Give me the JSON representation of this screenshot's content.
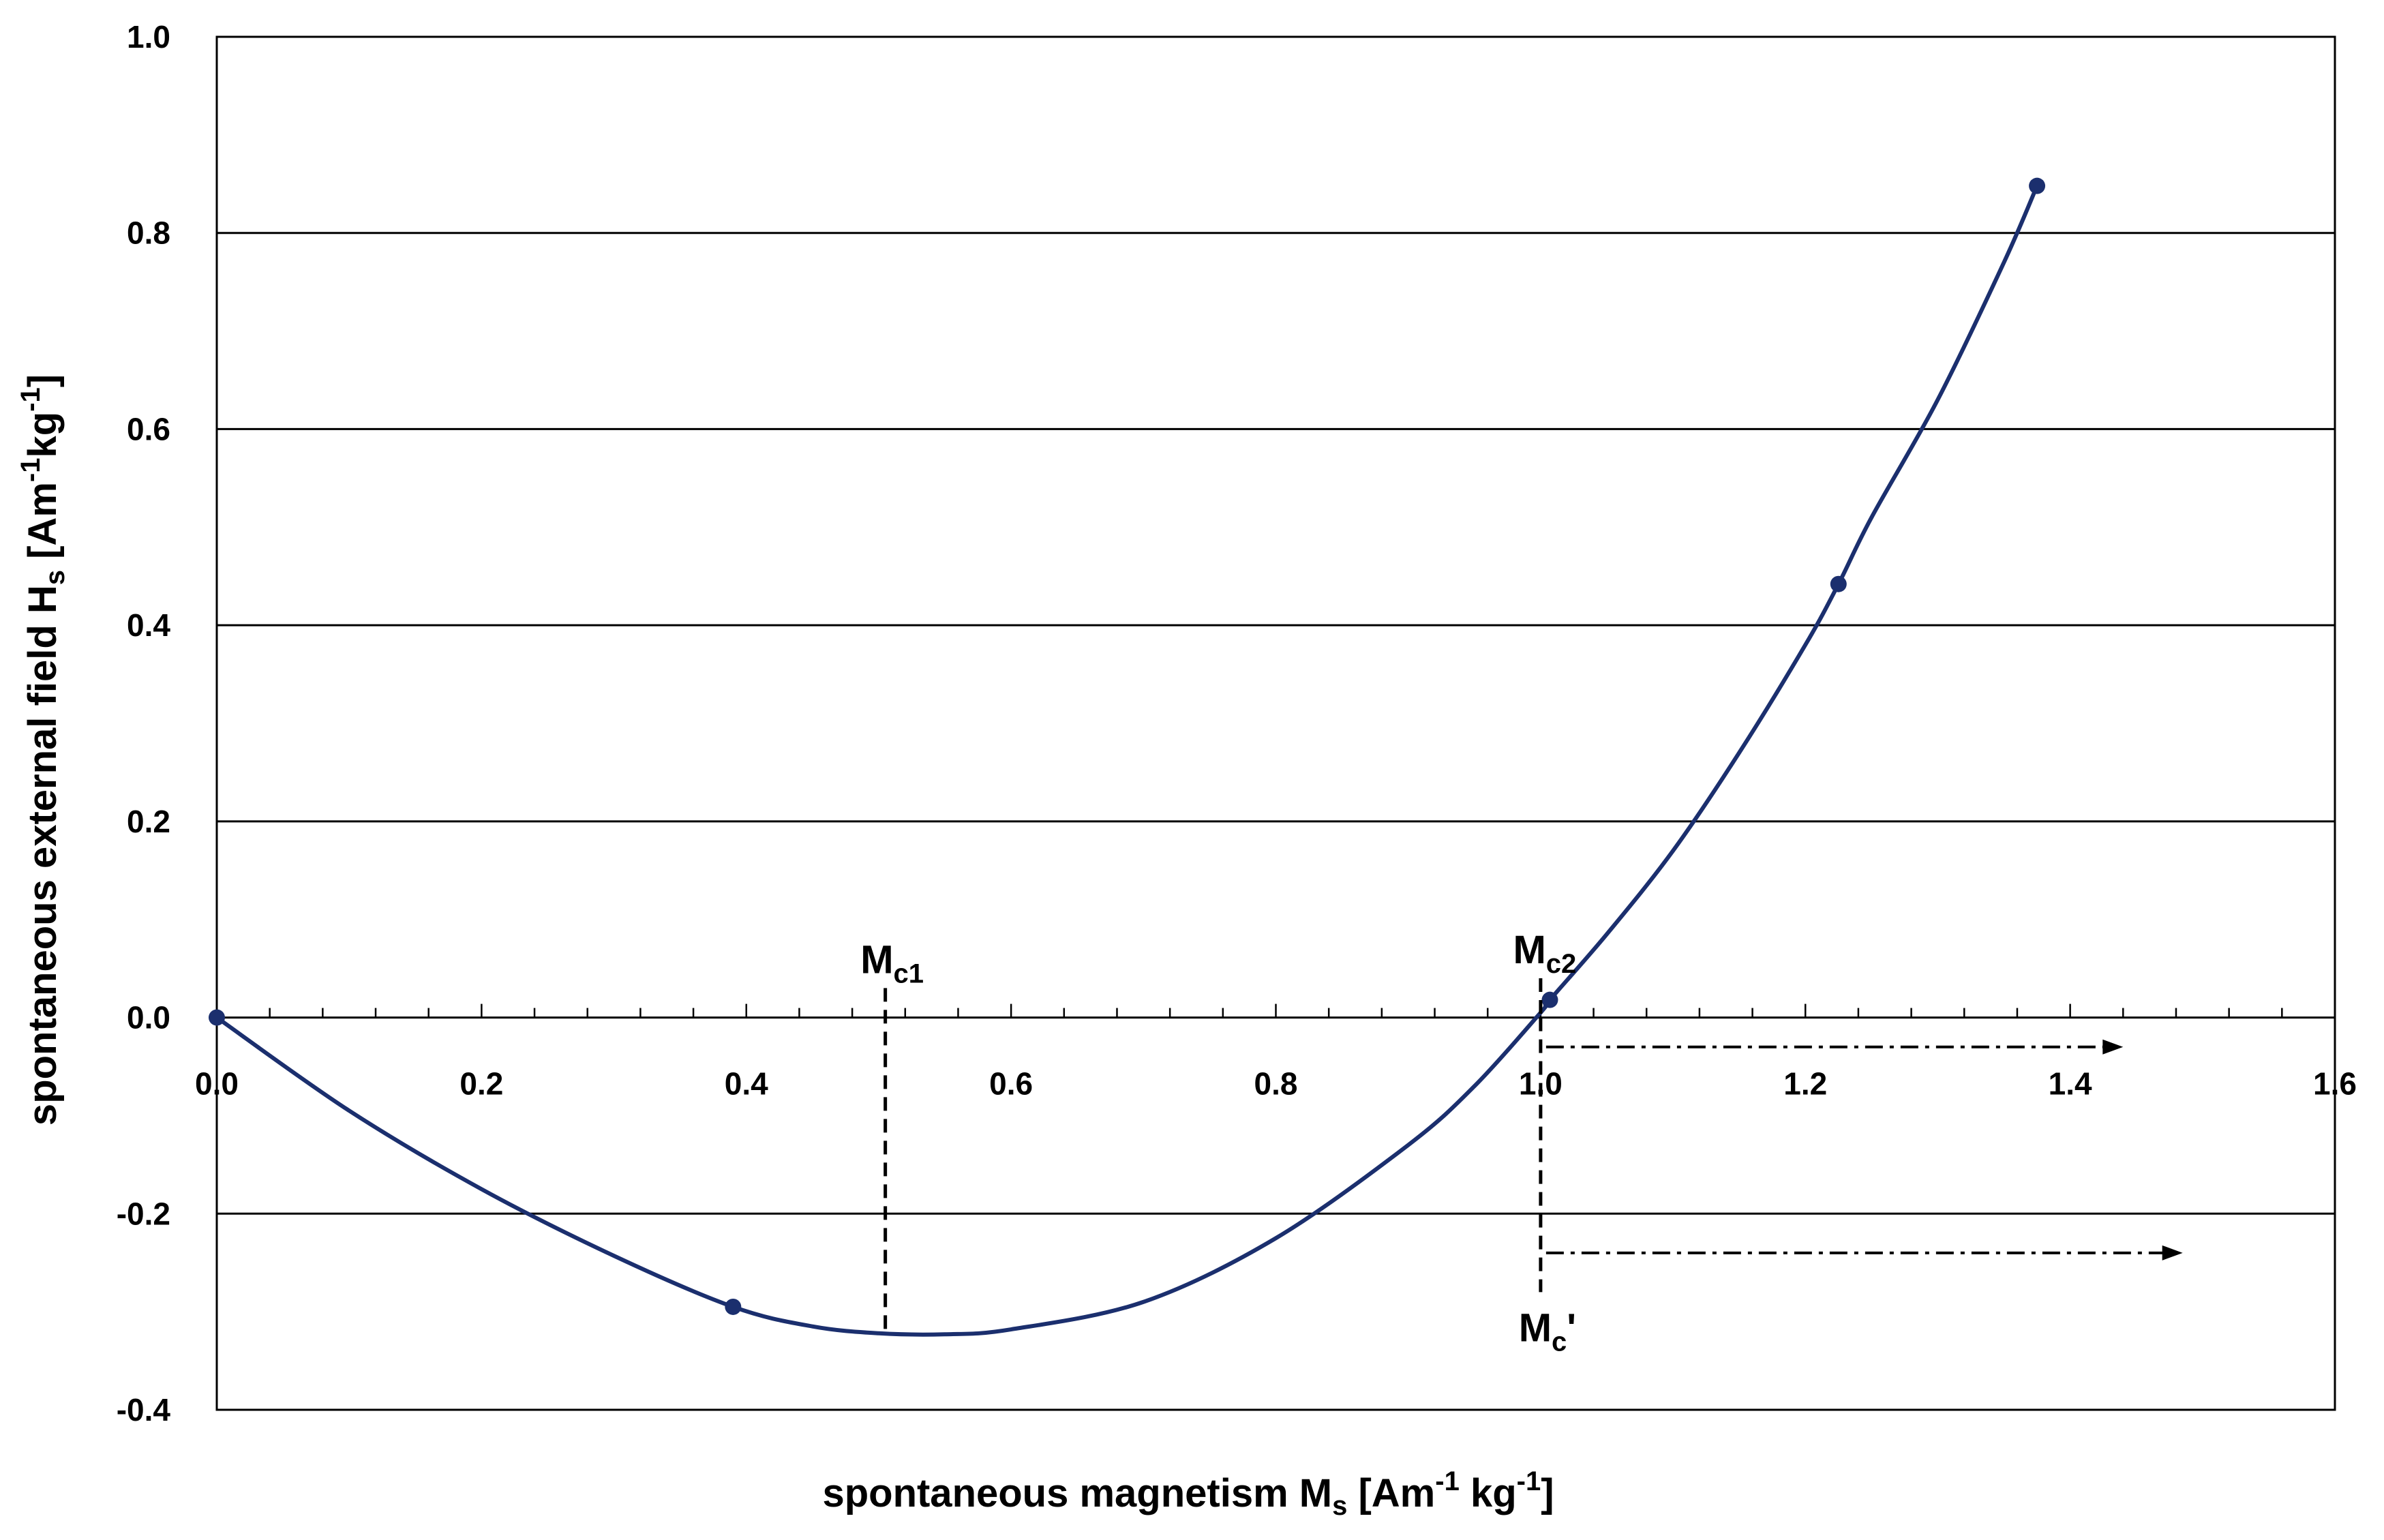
{
  "chart_data": {
    "type": "scatter",
    "title": "",
    "xlabel": {
      "main": "spontaneous magnetism M",
      "sub": "s",
      "unit_prefix": " [Am",
      "sup1": "-1",
      "unit_mid": " kg",
      "sup2": "-1",
      "unit_suffix": "]"
    },
    "ylabel": {
      "main": "spontaneous external field H",
      "sub": "s",
      "unit_prefix": " [Am",
      "sup1": "-1",
      "unit_mid": "kg",
      "sup2": "-1",
      "unit_suffix": "]"
    },
    "xlim": [
      0.0,
      1.6
    ],
    "ylim": [
      -0.4,
      1.0
    ],
    "x_ticks": [
      "0.0",
      "0.2",
      "0.4",
      "0.6",
      "0.8",
      "1.0",
      "1.2",
      "1.4",
      "1.6"
    ],
    "y_ticks": [
      "1.0",
      "0.8",
      "0.6",
      "0.4",
      "0.2",
      "0.0",
      "-0.2",
      "-0.4"
    ],
    "grid": "horizontal",
    "series": [
      {
        "color": "#1b2f6e",
        "points": [
          {
            "x": 0.0,
            "y": 0.0
          },
          {
            "x": 0.39,
            "y": -0.295
          },
          {
            "x": 1.007,
            "y": 0.018
          },
          {
            "x": 1.225,
            "y": 0.442
          },
          {
            "x": 1.375,
            "y": 0.848
          }
        ],
        "curve": [
          {
            "x": 0.0,
            "y": 0.0
          },
          {
            "x": 0.1,
            "y": -0.095
          },
          {
            "x": 0.2,
            "y": -0.175
          },
          {
            "x": 0.3,
            "y": -0.243
          },
          {
            "x": 0.39,
            "y": -0.295
          },
          {
            "x": 0.45,
            "y": -0.315
          },
          {
            "x": 0.5,
            "y": -0.322
          },
          {
            "x": 0.55,
            "y": -0.323
          },
          {
            "x": 0.6,
            "y": -0.318
          },
          {
            "x": 0.7,
            "y": -0.29
          },
          {
            "x": 0.8,
            "y": -0.225
          },
          {
            "x": 0.9,
            "y": -0.13
          },
          {
            "x": 0.95,
            "y": -0.07
          },
          {
            "x": 1.0,
            "y": 0.005
          },
          {
            "x": 1.007,
            "y": 0.018
          },
          {
            "x": 1.05,
            "y": 0.085
          },
          {
            "x": 1.1,
            "y": 0.17
          },
          {
            "x": 1.15,
            "y": 0.27
          },
          {
            "x": 1.2,
            "y": 0.38
          },
          {
            "x": 1.225,
            "y": 0.442
          },
          {
            "x": 1.25,
            "y": 0.51
          },
          {
            "x": 1.3,
            "y": 0.63
          },
          {
            "x": 1.35,
            "y": 0.77
          },
          {
            "x": 1.375,
            "y": 0.848
          }
        ]
      }
    ],
    "annotations": [
      {
        "main": "M",
        "sub": "c1",
        "suffix": "",
        "x": 0.505,
        "y_top": 0.03,
        "y_bottom": -0.322
      },
      {
        "main": "M",
        "sub": "c2",
        "suffix": "",
        "x": 1.0,
        "y_top": 0.04,
        "y_bottom": 0.0
      },
      {
        "main": "M",
        "sub": "c",
        "suffix": "'",
        "x": 1.0,
        "y_top": 0.0,
        "y_bottom": -0.28
      }
    ],
    "arrows": [
      {
        "x_start": 1.0,
        "x_end": 1.44,
        "y": -0.03
      },
      {
        "x_start": 1.0,
        "x_end": 1.485,
        "y": -0.24
      }
    ]
  }
}
